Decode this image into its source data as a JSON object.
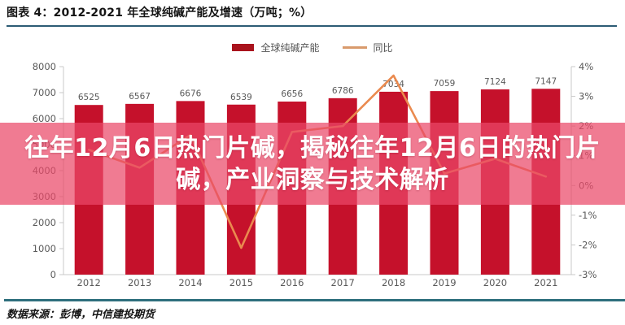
{
  "banner": {
    "line1": "往年12月6日热门片碱，揭秘往年12月6日的热门片",
    "line2": "碱，产业洞察与技术解析"
  },
  "footer": {
    "source": "数据来源：彭博，中信建投期货"
  },
  "chart_data": {
    "type": "bar",
    "title": "图表 4：2012-2021 年全球纯碱产能及增速（万吨；%）",
    "categories": [
      "2012",
      "2013",
      "2014",
      "2015",
      "2016",
      "2017",
      "2018",
      "2019",
      "2020",
      "2021"
    ],
    "series": [
      {
        "name": "全球纯碱产能",
        "type": "bar",
        "axis": "left",
        "color": "#c5112b",
        "values": [
          6525,
          6567,
          6676,
          6539,
          6656,
          6786,
          7034,
          7059,
          7124,
          7147
        ]
      },
      {
        "name": "同比",
        "type": "line",
        "axis": "right",
        "color": "#ea8a4f",
        "values": [
          1.2,
          0.6,
          1.7,
          -2.1,
          1.8,
          2.0,
          3.7,
          0.4,
          0.9,
          0.3
        ]
      }
    ],
    "left_axis": {
      "min": 0,
      "max": 8000,
      "step": 1000,
      "ticks": [
        "8000",
        "7000",
        "6000",
        "5000",
        "4000",
        "3000",
        "2000",
        "1000",
        "0"
      ]
    },
    "right_axis": {
      "min": -3,
      "max": 4,
      "step": 1,
      "ticks": [
        "4%",
        "3%",
        "2%",
        "1%",
        "0%",
        "-1%",
        "-2%",
        "-3%"
      ]
    },
    "grid": false,
    "legend_position": "top-center",
    "label_color": "#595959",
    "axis_color": "#c9c9c9"
  }
}
